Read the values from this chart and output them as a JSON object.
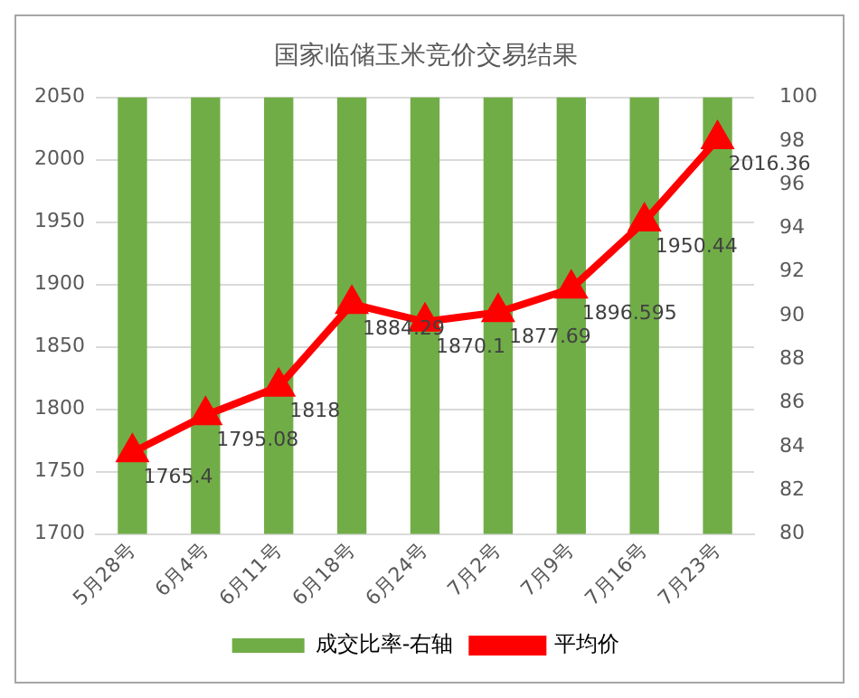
{
  "chart_data": {
    "type": "bar",
    "title": "国家临储玉米竞价交易结果",
    "categories": [
      "5月28号",
      "6月4号",
      "6月11号",
      "6月18号",
      "6月24号",
      "7月2号",
      "7月9号",
      "7月16号",
      "7月23号"
    ],
    "series": [
      {
        "name": "成交比率-右轴",
        "axis": "y2",
        "color": "#70ad47",
        "values": [
          100,
          100,
          100,
          100,
          100,
          100,
          100,
          100,
          100
        ]
      },
      {
        "name": "平均价",
        "type": "line",
        "color": "#ff0000",
        "values": [
          1765.4,
          1795.08,
          1818,
          1884.29,
          1870.1,
          1877.69,
          1896.595,
          1950.44,
          2016.36
        ],
        "data_labels": true
      }
    ],
    "ylim": [
      1700,
      2050
    ],
    "yticks": [
      1700,
      1750,
      1800,
      1850,
      1900,
      1950,
      2000,
      2050
    ],
    "y2lim": [
      80,
      100
    ],
    "y2ticks": [
      80,
      82,
      84,
      86,
      88,
      90,
      92,
      94,
      96,
      98,
      100
    ],
    "grid": "y",
    "legend": "bottom",
    "marker": "triangle",
    "line_style": "solid"
  }
}
